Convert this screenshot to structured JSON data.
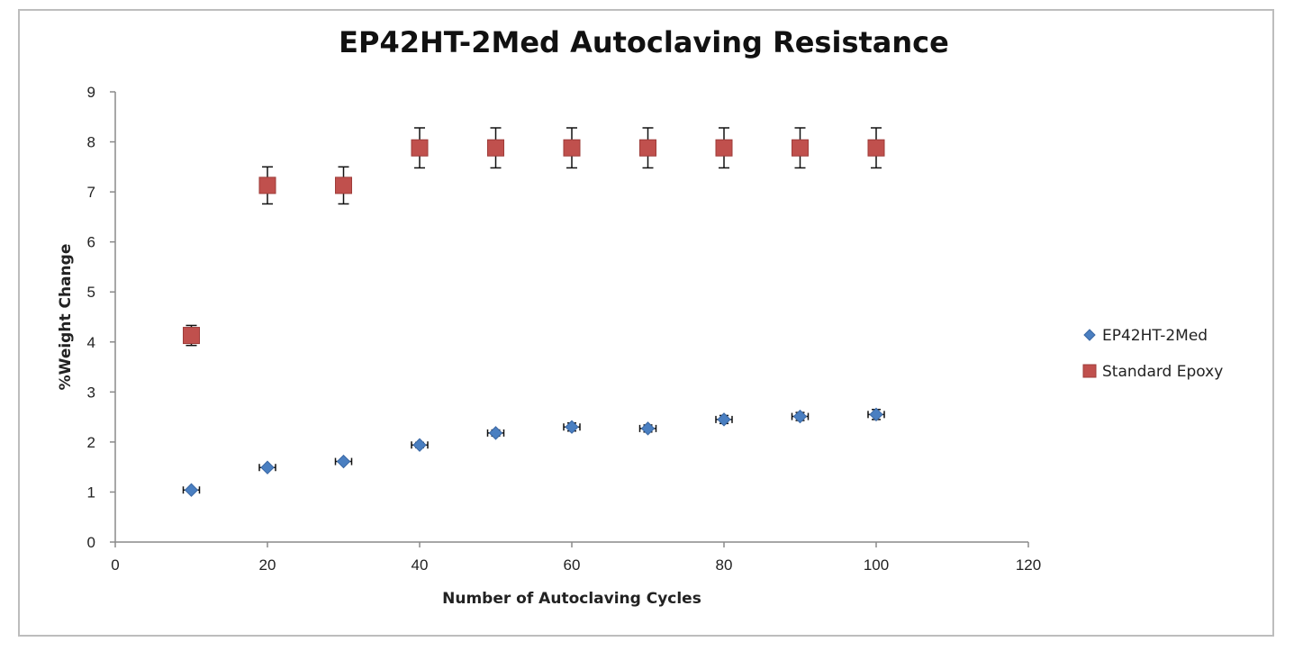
{
  "chart_data": {
    "type": "scatter",
    "title": "EP42HT-2Med Autoclaving Resistance",
    "xlabel": "Number of Autoclaving Cycles",
    "ylabel": "%Weight Change",
    "xlim": [
      0,
      120
    ],
    "ylim": [
      0,
      9
    ],
    "xticks": [
      0,
      20,
      40,
      60,
      80,
      100,
      120
    ],
    "yticks": [
      0,
      1,
      2,
      3,
      4,
      5,
      6,
      7,
      8,
      9
    ],
    "grid": false,
    "legend_position": "right",
    "series": [
      {
        "name": "EP42HT-2Med",
        "marker": "diamond",
        "color": "#4a7fc1",
        "x": [
          10,
          20,
          30,
          40,
          50,
          60,
          70,
          80,
          90,
          100
        ],
        "y": [
          1.04,
          1.49,
          1.61,
          1.94,
          2.18,
          2.3,
          2.27,
          2.45,
          2.51,
          2.55
        ],
        "error": [
          0.03,
          0.03,
          0.03,
          0.05,
          0.06,
          0.08,
          0.07,
          0.08,
          0.08,
          0.1
        ]
      },
      {
        "name": "Standard Epoxy",
        "marker": "square",
        "color": "#c0504d",
        "x": [
          10,
          20,
          30,
          40,
          50,
          60,
          70,
          80,
          90,
          100
        ],
        "y": [
          4.13,
          7.13,
          7.13,
          7.88,
          7.88,
          7.88,
          7.88,
          7.88,
          7.88,
          7.88
        ],
        "error": [
          0.2,
          0.37,
          0.37,
          0.4,
          0.4,
          0.4,
          0.4,
          0.4,
          0.4,
          0.4
        ]
      }
    ]
  }
}
